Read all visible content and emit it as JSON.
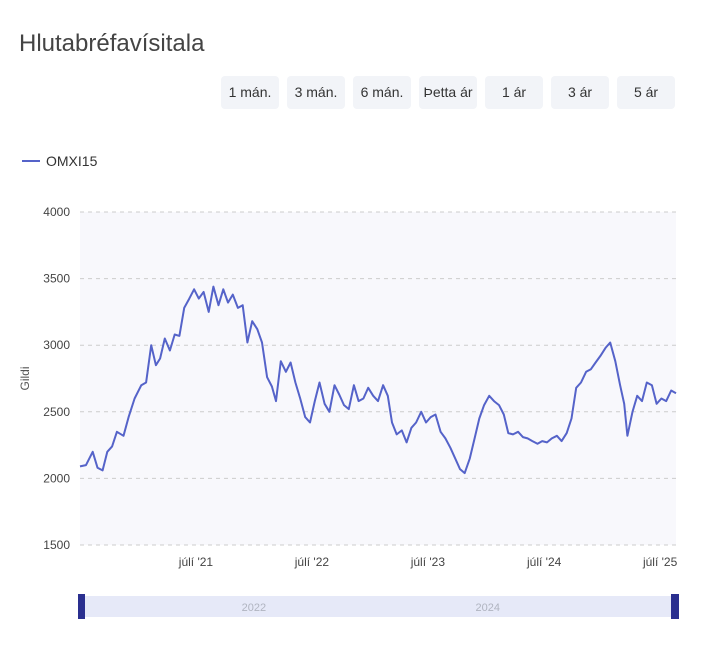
{
  "title": "Hlutabréfavísitala",
  "range_buttons": [
    {
      "label": "1 mán."
    },
    {
      "label": "3 mán."
    },
    {
      "label": "6 mán."
    },
    {
      "label": "Þetta ár"
    },
    {
      "label": "1 ár"
    },
    {
      "label": "3 ár"
    },
    {
      "label": "5 ár"
    }
  ],
  "navigator_labels": [
    "2022",
    "2024"
  ],
  "colors": {
    "series": "#5563c9",
    "plot_bg": "#f8f8fc",
    "grid": "#cccccc",
    "navigator": "#e6e9f8",
    "handle": "#2a2f8f"
  },
  "chart_data": {
    "type": "line",
    "ylabel": "Gildi",
    "xlabel": "",
    "ylim": [
      1500,
      4000
    ],
    "yticks": [
      1500,
      2000,
      2500,
      3000,
      3500,
      4000
    ],
    "xlim": [
      "2020-07-01",
      "2025-08-20"
    ],
    "xticks": [
      {
        "date": "2021-07-01",
        "label": "júlí '21"
      },
      {
        "date": "2022-07-01",
        "label": "júlí '22"
      },
      {
        "date": "2023-07-01",
        "label": "júlí '23"
      },
      {
        "date": "2024-07-01",
        "label": "júlí '24"
      },
      {
        "date": "2025-07-01",
        "label": "júlí '25"
      }
    ],
    "series": [
      {
        "name": "OMXI15",
        "points": [
          [
            "2020-07-01",
            2090
          ],
          [
            "2020-07-20",
            2100
          ],
          [
            "2020-08-10",
            2200
          ],
          [
            "2020-08-25",
            2080
          ],
          [
            "2020-09-10",
            2060
          ],
          [
            "2020-09-25",
            2200
          ],
          [
            "2020-10-10",
            2240
          ],
          [
            "2020-10-25",
            2350
          ],
          [
            "2020-11-15",
            2320
          ],
          [
            "2020-12-01",
            2460
          ],
          [
            "2020-12-20",
            2600
          ],
          [
            "2021-01-10",
            2700
          ],
          [
            "2021-01-25",
            2720
          ],
          [
            "2021-02-10",
            3000
          ],
          [
            "2021-02-25",
            2850
          ],
          [
            "2021-03-10",
            2900
          ],
          [
            "2021-03-25",
            3050
          ],
          [
            "2021-04-10",
            2960
          ],
          [
            "2021-04-25",
            3080
          ],
          [
            "2021-05-10",
            3070
          ],
          [
            "2021-05-25",
            3280
          ],
          [
            "2021-06-10",
            3350
          ],
          [
            "2021-06-25",
            3420
          ],
          [
            "2021-07-10",
            3350
          ],
          [
            "2021-07-25",
            3400
          ],
          [
            "2021-08-10",
            3250
          ],
          [
            "2021-08-25",
            3440
          ],
          [
            "2021-09-10",
            3300
          ],
          [
            "2021-09-25",
            3420
          ],
          [
            "2021-10-10",
            3320
          ],
          [
            "2021-10-25",
            3380
          ],
          [
            "2021-11-10",
            3280
          ],
          [
            "2021-11-25",
            3300
          ],
          [
            "2021-12-10",
            3020
          ],
          [
            "2021-12-25",
            3180
          ],
          [
            "2022-01-10",
            3120
          ],
          [
            "2022-01-25",
            3020
          ],
          [
            "2022-02-10",
            2760
          ],
          [
            "2022-02-25",
            2690
          ],
          [
            "2022-03-10",
            2580
          ],
          [
            "2022-03-25",
            2880
          ],
          [
            "2022-04-10",
            2800
          ],
          [
            "2022-04-25",
            2870
          ],
          [
            "2022-05-10",
            2720
          ],
          [
            "2022-05-25",
            2600
          ],
          [
            "2022-06-10",
            2460
          ],
          [
            "2022-06-25",
            2420
          ],
          [
            "2022-07-10",
            2580
          ],
          [
            "2022-07-25",
            2720
          ],
          [
            "2022-08-10",
            2560
          ],
          [
            "2022-08-25",
            2500
          ],
          [
            "2022-09-10",
            2700
          ],
          [
            "2022-09-25",
            2630
          ],
          [
            "2022-10-10",
            2550
          ],
          [
            "2022-10-25",
            2520
          ],
          [
            "2022-11-10",
            2700
          ],
          [
            "2022-11-25",
            2580
          ],
          [
            "2022-12-10",
            2600
          ],
          [
            "2022-12-25",
            2680
          ],
          [
            "2023-01-10",
            2620
          ],
          [
            "2023-01-25",
            2580
          ],
          [
            "2023-02-10",
            2700
          ],
          [
            "2023-02-25",
            2620
          ],
          [
            "2023-03-10",
            2420
          ],
          [
            "2023-03-25",
            2330
          ],
          [
            "2023-04-10",
            2360
          ],
          [
            "2023-04-25",
            2270
          ],
          [
            "2023-05-10",
            2380
          ],
          [
            "2023-05-25",
            2420
          ],
          [
            "2023-06-10",
            2500
          ],
          [
            "2023-06-25",
            2420
          ],
          [
            "2023-07-10",
            2460
          ],
          [
            "2023-07-25",
            2480
          ],
          [
            "2023-08-10",
            2350
          ],
          [
            "2023-08-25",
            2300
          ],
          [
            "2023-09-10",
            2230
          ],
          [
            "2023-09-25",
            2150
          ],
          [
            "2023-10-10",
            2070
          ],
          [
            "2023-10-25",
            2040
          ],
          [
            "2023-11-10",
            2150
          ],
          [
            "2023-11-25",
            2300
          ],
          [
            "2023-12-10",
            2450
          ],
          [
            "2023-12-25",
            2550
          ],
          [
            "2024-01-10",
            2620
          ],
          [
            "2024-01-25",
            2580
          ],
          [
            "2024-02-10",
            2550
          ],
          [
            "2024-02-25",
            2480
          ],
          [
            "2024-03-10",
            2340
          ],
          [
            "2024-03-25",
            2330
          ],
          [
            "2024-04-10",
            2350
          ],
          [
            "2024-04-25",
            2310
          ],
          [
            "2024-05-10",
            2300
          ],
          [
            "2024-05-25",
            2280
          ],
          [
            "2024-06-10",
            2260
          ],
          [
            "2024-06-25",
            2280
          ],
          [
            "2024-07-10",
            2270
          ],
          [
            "2024-07-25",
            2300
          ],
          [
            "2024-08-10",
            2320
          ],
          [
            "2024-08-25",
            2280
          ],
          [
            "2024-09-10",
            2340
          ],
          [
            "2024-09-25",
            2450
          ],
          [
            "2024-10-10",
            2680
          ],
          [
            "2024-10-25",
            2720
          ],
          [
            "2024-11-10",
            2800
          ],
          [
            "2024-11-25",
            2820
          ],
          [
            "2024-12-10",
            2870
          ],
          [
            "2024-12-25",
            2920
          ],
          [
            "2025-01-10",
            2980
          ],
          [
            "2025-01-25",
            3020
          ],
          [
            "2025-02-10",
            2880
          ],
          [
            "2025-02-25",
            2700
          ],
          [
            "2025-03-10",
            2560
          ],
          [
            "2025-03-20",
            2320
          ],
          [
            "2025-04-05",
            2500
          ],
          [
            "2025-04-20",
            2620
          ],
          [
            "2025-05-05",
            2580
          ],
          [
            "2025-05-20",
            2720
          ],
          [
            "2025-06-05",
            2700
          ],
          [
            "2025-06-20",
            2560
          ],
          [
            "2025-07-05",
            2600
          ],
          [
            "2025-07-20",
            2580
          ],
          [
            "2025-08-05",
            2660
          ],
          [
            "2025-08-20",
            2640
          ]
        ]
      }
    ]
  }
}
